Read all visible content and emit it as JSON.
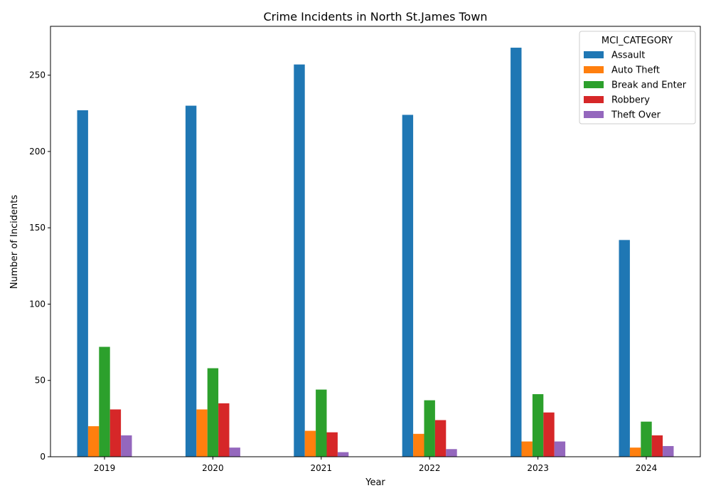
{
  "chart_data": {
    "type": "bar",
    "title": "Crime Incidents in North St.James Town",
    "xlabel": "Year",
    "ylabel": "Number of Incidents",
    "categories": [
      "2019",
      "2020",
      "2021",
      "2022",
      "2023",
      "2024"
    ],
    "series": [
      {
        "name": "Assault",
        "color": "#1f77b4",
        "values": [
          227,
          230,
          257,
          224,
          268,
          142
        ]
      },
      {
        "name": "Auto Theft",
        "color": "#ff7f0e",
        "values": [
          20,
          31,
          17,
          15,
          10,
          6
        ]
      },
      {
        "name": "Break and Enter",
        "color": "#2ca02c",
        "values": [
          72,
          58,
          44,
          37,
          41,
          23
        ]
      },
      {
        "name": "Robbery",
        "color": "#d62728",
        "values": [
          31,
          35,
          16,
          24,
          29,
          14
        ]
      },
      {
        "name": "Theft Over",
        "color": "#9467bd",
        "values": [
          14,
          6,
          3,
          5,
          10,
          7
        ]
      }
    ],
    "ylim": [
      0,
      282
    ],
    "yticks": [
      0,
      50,
      100,
      150,
      200,
      250
    ],
    "legend": {
      "title": "MCI_CATEGORY",
      "placement": "top-right"
    },
    "grid": false
  }
}
